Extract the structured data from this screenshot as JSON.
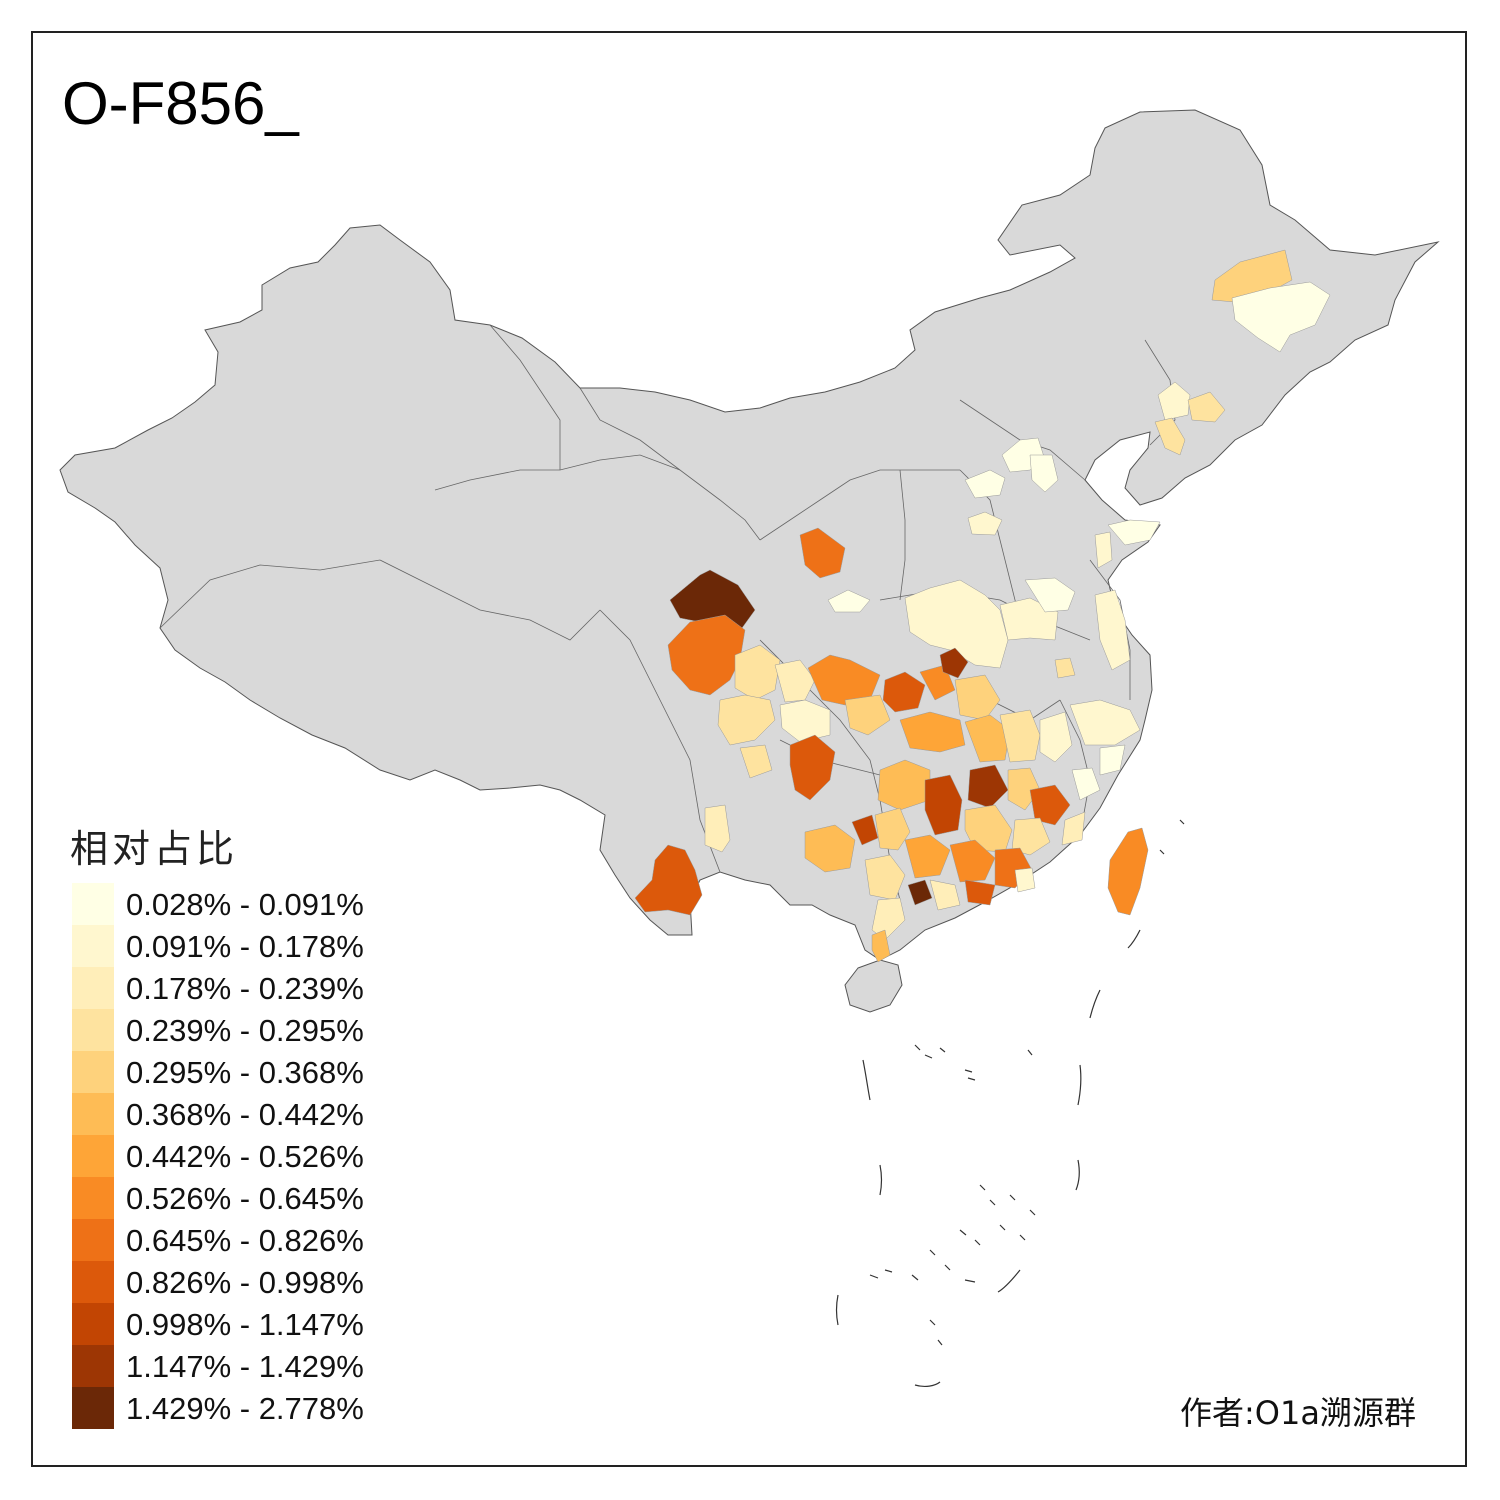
{
  "title": "O-F856_",
  "legend": {
    "title": "相对占比",
    "items": [
      {
        "label": "0.028% - 0.091%",
        "color": "#FFFFE5"
      },
      {
        "label": "0.091% - 0.178%",
        "color": "#FFF7CF"
      },
      {
        "label": "0.178% - 0.239%",
        "color": "#FFEEB9"
      },
      {
        "label": "0.239% - 0.295%",
        "color": "#FEE39F"
      },
      {
        "label": "0.295% - 0.368%",
        "color": "#FED27C"
      },
      {
        "label": "0.368% - 0.442%",
        "color": "#FEBC55"
      },
      {
        "label": "0.442% - 0.526%",
        "color": "#FEA537"
      },
      {
        "label": "0.526% - 0.645%",
        "color": "#F98B24"
      },
      {
        "label": "0.645% - 0.826%",
        "color": "#EE7117"
      },
      {
        "label": "0.826% - 0.998%",
        "color": "#DC590B"
      },
      {
        "label": "0.998% - 1.147%",
        "color": "#C24503"
      },
      {
        "label": "1.147% - 1.429%",
        "color": "#9D3604"
      },
      {
        "label": "1.429% - 2.778%",
        "color": "#6B2807"
      }
    ]
  },
  "credit": "作者:O1a溯源群",
  "colors": {
    "no_data": "#D9D9D9",
    "border": "#555555"
  }
}
